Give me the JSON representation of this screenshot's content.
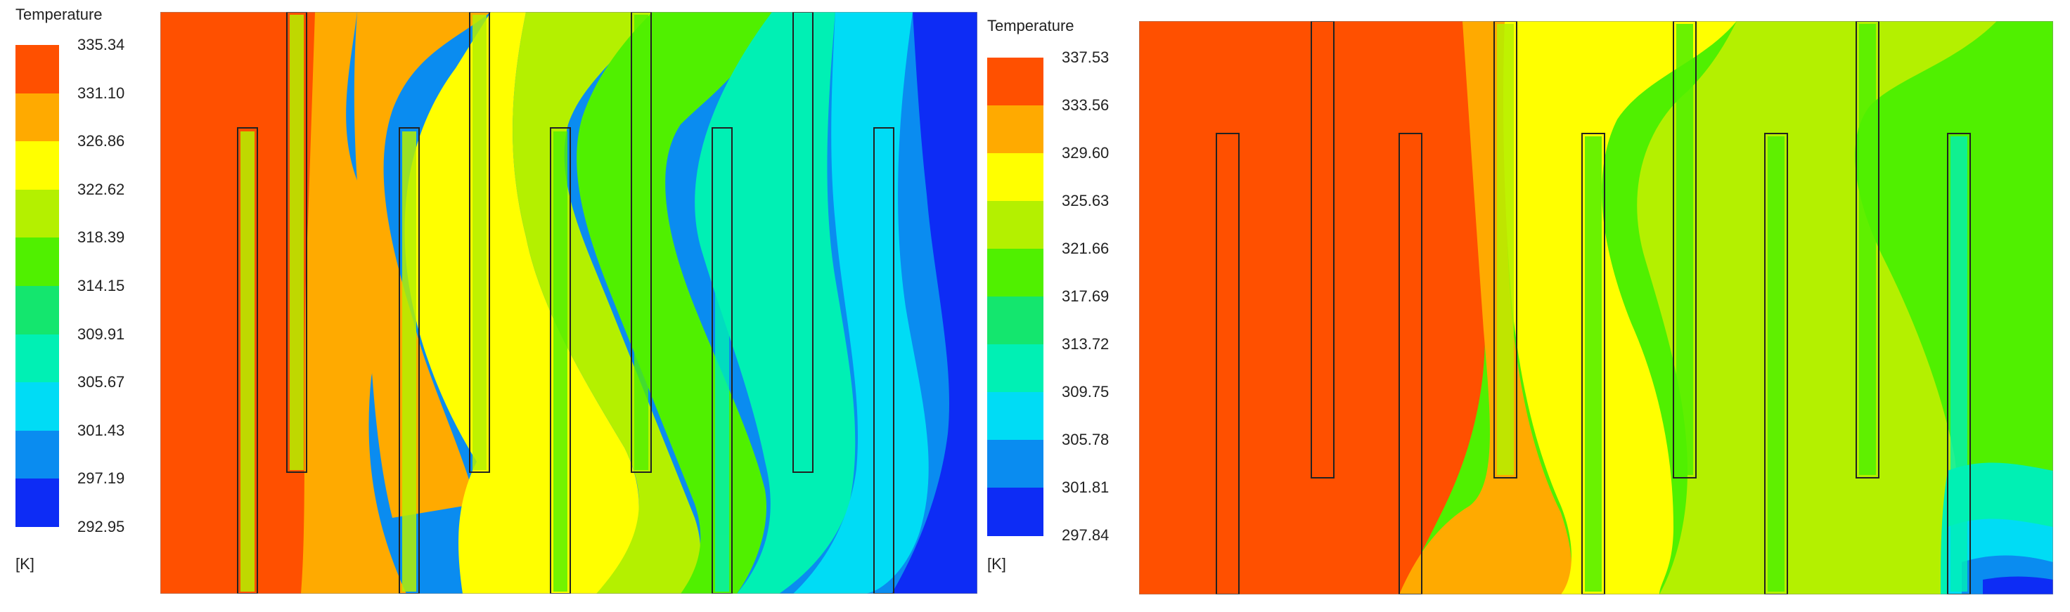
{
  "colormap": [
    "#0d2cf5",
    "#0a8cf0",
    "#00dcf5",
    "#00f0b4",
    "#14e66e",
    "#50f000",
    "#b4f000",
    "#ffff00",
    "#ffaa00",
    "#ff5000",
    "#ff3c14"
  ],
  "left_panel": {
    "legend_title": "Temperature",
    "unit": "[K]",
    "ticks": [
      "335.34",
      "331.10",
      "326.86",
      "322.62",
      "318.39",
      "314.15",
      "309.91",
      "305.67",
      "301.43",
      "297.19",
      "292.95"
    ],
    "swatch_colors": [
      "#ff5000",
      "#ffaa00",
      "#ffff00",
      "#b4f000",
      "#50f000",
      "#14e66e",
      "#00f0b4",
      "#00dcf5",
      "#0a8cf0",
      "#0d2cf5"
    ]
  },
  "right_panel": {
    "legend_title": "Temperature",
    "unit": "[K]",
    "ticks": [
      "337.53",
      "333.56",
      "329.60",
      "325.63",
      "321.66",
      "317.69",
      "313.72",
      "309.75",
      "305.78",
      "301.81",
      "297.84"
    ],
    "swatch_colors": [
      "#ff5000",
      "#ffaa00",
      "#ffff00",
      "#b4f000",
      "#50f000",
      "#14e66e",
      "#00f0b4",
      "#00dcf5",
      "#0a8cf0",
      "#0d2cf5"
    ]
  }
}
